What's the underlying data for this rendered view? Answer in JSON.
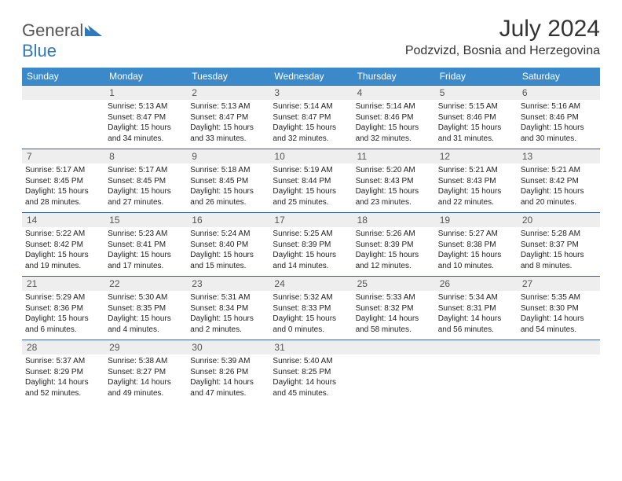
{
  "logo": {
    "part1": "General",
    "part2": "Blue"
  },
  "title": "July 2024",
  "location": "Podzvizd, Bosnia and Herzegovina",
  "colors": {
    "header_bg": "#3b89c9",
    "header_fg": "#ffffff",
    "daynum_bg": "#eeeeee",
    "rule": "#355f8a",
    "logo_gray": "#555555",
    "logo_blue": "#2f79bd"
  },
  "weekdays": [
    "Sunday",
    "Monday",
    "Tuesday",
    "Wednesday",
    "Thursday",
    "Friday",
    "Saturday"
  ],
  "weeks": [
    {
      "nums": [
        "",
        "1",
        "2",
        "3",
        "4",
        "5",
        "6"
      ],
      "cells": [
        null,
        {
          "sunrise": "5:13 AM",
          "sunset": "8:47 PM",
          "daylight": "15 hours and 34 minutes."
        },
        {
          "sunrise": "5:13 AM",
          "sunset": "8:47 PM",
          "daylight": "15 hours and 33 minutes."
        },
        {
          "sunrise": "5:14 AM",
          "sunset": "8:47 PM",
          "daylight": "15 hours and 32 minutes."
        },
        {
          "sunrise": "5:14 AM",
          "sunset": "8:46 PM",
          "daylight": "15 hours and 32 minutes."
        },
        {
          "sunrise": "5:15 AM",
          "sunset": "8:46 PM",
          "daylight": "15 hours and 31 minutes."
        },
        {
          "sunrise": "5:16 AM",
          "sunset": "8:46 PM",
          "daylight": "15 hours and 30 minutes."
        }
      ]
    },
    {
      "nums": [
        "7",
        "8",
        "9",
        "10",
        "11",
        "12",
        "13"
      ],
      "cells": [
        {
          "sunrise": "5:17 AM",
          "sunset": "8:45 PM",
          "daylight": "15 hours and 28 minutes."
        },
        {
          "sunrise": "5:17 AM",
          "sunset": "8:45 PM",
          "daylight": "15 hours and 27 minutes."
        },
        {
          "sunrise": "5:18 AM",
          "sunset": "8:45 PM",
          "daylight": "15 hours and 26 minutes."
        },
        {
          "sunrise": "5:19 AM",
          "sunset": "8:44 PM",
          "daylight": "15 hours and 25 minutes."
        },
        {
          "sunrise": "5:20 AM",
          "sunset": "8:43 PM",
          "daylight": "15 hours and 23 minutes."
        },
        {
          "sunrise": "5:21 AM",
          "sunset": "8:43 PM",
          "daylight": "15 hours and 22 minutes."
        },
        {
          "sunrise": "5:21 AM",
          "sunset": "8:42 PM",
          "daylight": "15 hours and 20 minutes."
        }
      ]
    },
    {
      "nums": [
        "14",
        "15",
        "16",
        "17",
        "18",
        "19",
        "20"
      ],
      "cells": [
        {
          "sunrise": "5:22 AM",
          "sunset": "8:42 PM",
          "daylight": "15 hours and 19 minutes."
        },
        {
          "sunrise": "5:23 AM",
          "sunset": "8:41 PM",
          "daylight": "15 hours and 17 minutes."
        },
        {
          "sunrise": "5:24 AM",
          "sunset": "8:40 PM",
          "daylight": "15 hours and 15 minutes."
        },
        {
          "sunrise": "5:25 AM",
          "sunset": "8:39 PM",
          "daylight": "15 hours and 14 minutes."
        },
        {
          "sunrise": "5:26 AM",
          "sunset": "8:39 PM",
          "daylight": "15 hours and 12 minutes."
        },
        {
          "sunrise": "5:27 AM",
          "sunset": "8:38 PM",
          "daylight": "15 hours and 10 minutes."
        },
        {
          "sunrise": "5:28 AM",
          "sunset": "8:37 PM",
          "daylight": "15 hours and 8 minutes."
        }
      ]
    },
    {
      "nums": [
        "21",
        "22",
        "23",
        "24",
        "25",
        "26",
        "27"
      ],
      "cells": [
        {
          "sunrise": "5:29 AM",
          "sunset": "8:36 PM",
          "daylight": "15 hours and 6 minutes."
        },
        {
          "sunrise": "5:30 AM",
          "sunset": "8:35 PM",
          "daylight": "15 hours and 4 minutes."
        },
        {
          "sunrise": "5:31 AM",
          "sunset": "8:34 PM",
          "daylight": "15 hours and 2 minutes."
        },
        {
          "sunrise": "5:32 AM",
          "sunset": "8:33 PM",
          "daylight": "15 hours and 0 minutes."
        },
        {
          "sunrise": "5:33 AM",
          "sunset": "8:32 PM",
          "daylight": "14 hours and 58 minutes."
        },
        {
          "sunrise": "5:34 AM",
          "sunset": "8:31 PM",
          "daylight": "14 hours and 56 minutes."
        },
        {
          "sunrise": "5:35 AM",
          "sunset": "8:30 PM",
          "daylight": "14 hours and 54 minutes."
        }
      ]
    },
    {
      "nums": [
        "28",
        "29",
        "30",
        "31",
        "",
        "",
        ""
      ],
      "cells": [
        {
          "sunrise": "5:37 AM",
          "sunset": "8:29 PM",
          "daylight": "14 hours and 52 minutes."
        },
        {
          "sunrise": "5:38 AM",
          "sunset": "8:27 PM",
          "daylight": "14 hours and 49 minutes."
        },
        {
          "sunrise": "5:39 AM",
          "sunset": "8:26 PM",
          "daylight": "14 hours and 47 minutes."
        },
        {
          "sunrise": "5:40 AM",
          "sunset": "8:25 PM",
          "daylight": "14 hours and 45 minutes."
        },
        null,
        null,
        null
      ]
    }
  ],
  "labels": {
    "sunrise": "Sunrise:",
    "sunset": "Sunset:",
    "daylight": "Daylight:"
  }
}
